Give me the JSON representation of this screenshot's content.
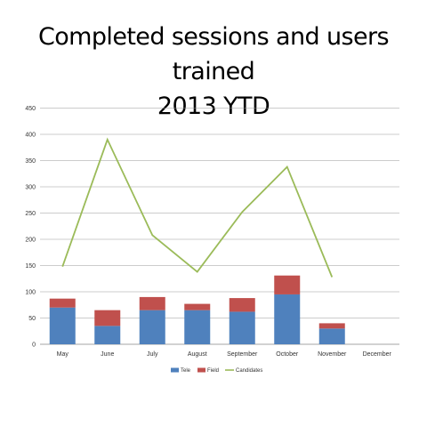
{
  "chart_data": {
    "type": "bar",
    "title": [
      "Completed sessions and users trained",
      "2013 YTD"
    ],
    "categories": [
      "May",
      "June",
      "July",
      "August",
      "September",
      "October",
      "November",
      "December"
    ],
    "series": [
      {
        "name": "Tele",
        "type": "stacked-bar",
        "color": "#4f81bd",
        "values": [
          70,
          35,
          65,
          65,
          62,
          95,
          30,
          null
        ]
      },
      {
        "name": "Field",
        "type": "stacked-bar",
        "color": "#c0504d",
        "values": [
          17,
          30,
          25,
          12,
          26,
          36,
          10,
          null
        ]
      },
      {
        "name": "Candidates",
        "type": "line",
        "color": "#9bbb59",
        "values": [
          148,
          390,
          208,
          138,
          252,
          338,
          128,
          null
        ]
      }
    ],
    "yticks": [
      "0",
      "50",
      "100",
      "150",
      "200",
      "250",
      "300",
      "350",
      "400",
      "450"
    ],
    "ylim": [
      0,
      450
    ],
    "grid": true,
    "legend_position": "bottom"
  }
}
